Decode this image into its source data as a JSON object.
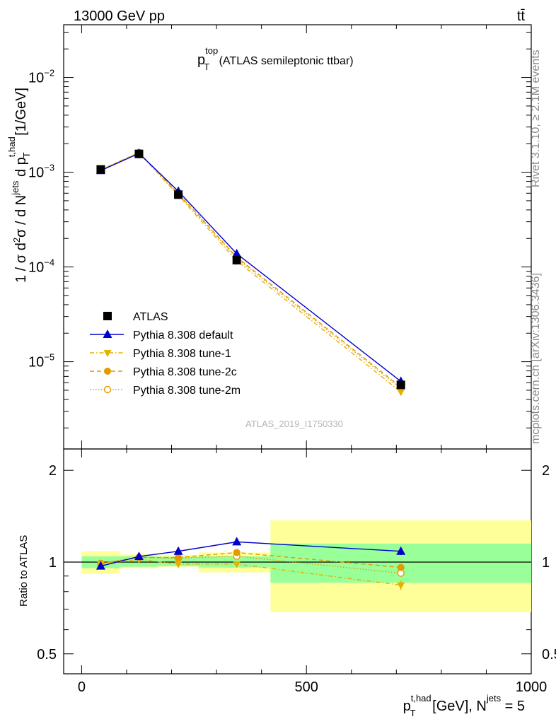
{
  "header": {
    "energy_label": "13000 GeV pp",
    "process_label": "tt̄",
    "plot_title_main": "p",
    "plot_title_sup": "top",
    "plot_title_sub": "T",
    "plot_title_rest": " (ATLAS semileptonic ttbar)",
    "analysis_id": "ATLAS_2019_I1750330",
    "side_rivet": "Rivet 3.1.10, ≥ 2.1M events",
    "side_mcplots": "mcplots.cern.ch [arXiv:1306.3436]"
  },
  "axes": {
    "ylabel_upper": "1 / σ d²σ / d N^jets d p_T^t,had [1/GeV]",
    "ylabel_lower": "Ratio to ATLAS",
    "xlabel": "p_T^t,had [GeV], N^jets = 5"
  },
  "chart_data": [
    {
      "type": "line",
      "panel": "main",
      "yscale": "log",
      "xlim": [
        -40,
        1000
      ],
      "ylim": [
        1.2e-06,
        0.036
      ],
      "xticks": [
        0,
        500,
        1000
      ],
      "xticklabels": [
        "0",
        "500",
        "1000"
      ],
      "yticks": [
        1e-05,
        0.0001,
        0.001,
        0.01
      ],
      "yticklabels": [
        "10^-5",
        "10^-4",
        "10^-3",
        "10^-2"
      ],
      "x": [
        42.5,
        127.5,
        215,
        345,
        710
      ],
      "bin_edges": [
        0,
        85,
        170,
        260,
        420,
        1000
      ],
      "legend_position": "lower-left",
      "series": [
        {
          "name": "ATLAS",
          "values": [
            0.00107,
            0.00156,
            0.00058,
            0.000118,
            5.7e-06
          ],
          "color": "#000000",
          "marker": "square",
          "line": "none"
        },
        {
          "name": "Pythia 8.308 default",
          "values": [
            0.00104,
            0.00158,
            0.00063,
            0.000138,
            6.2e-06
          ],
          "color": "#0000cc",
          "marker": "triangle-up",
          "line": "solid"
        },
        {
          "name": "Pythia 8.308 tune-1",
          "values": [
            0.00105,
            0.0016,
            0.00057,
            0.000116,
            4.8e-06
          ],
          "color": "#e6b000",
          "marker": "triangle-down",
          "line": "dashdot"
        },
        {
          "name": "Pythia 8.308 tune-2c",
          "values": [
            0.00106,
            0.00161,
            0.0006,
            0.000127,
            5.4e-06
          ],
          "color": "#e39a00",
          "marker": "circle",
          "line": "dashed"
        },
        {
          "name": "Pythia 8.308 tune-2m",
          "values": [
            0.00106,
            0.00161,
            0.00059,
            0.000123,
            5.2e-06
          ],
          "color": "#e39a00",
          "marker": "circle-open",
          "line": "dotted"
        }
      ]
    },
    {
      "type": "line",
      "panel": "ratio",
      "yscale": "log",
      "ylim": [
        0.43,
        2.35
      ],
      "yticks": [
        0.5,
        1,
        2
      ],
      "yticklabels": [
        "0.5",
        "1",
        "2"
      ],
      "x": [
        42.5,
        127.5,
        215,
        345,
        710
      ],
      "bands": {
        "bin_edges": [
          0,
          85,
          170,
          260,
          420,
          1000
        ],
        "green_low": [
          0.955,
          0.965,
          0.97,
          0.96,
          0.855
        ],
        "green_high": [
          1.045,
          1.045,
          1.04,
          1.045,
          1.15
        ],
        "yellow_low": [
          0.915,
          0.955,
          0.965,
          0.925,
          0.685
        ],
        "yellow_high": [
          1.085,
          1.06,
          1.055,
          1.075,
          1.37
        ]
      },
      "series": [
        {
          "name": "Pythia 8.308 default",
          "values": [
            0.97,
            1.043,
            1.085,
            1.165,
            1.085
          ],
          "color": "#0000cc",
          "marker": "triangle-up",
          "line": "solid"
        },
        {
          "name": "Pythia 8.308 tune-1",
          "values": [
            0.985,
            1.02,
            0.985,
            0.985,
            0.84
          ],
          "color": "#e6b000",
          "marker": "triangle-down",
          "line": "dashdot"
        },
        {
          "name": "Pythia 8.308 tune-2c",
          "values": [
            0.99,
            1.035,
            1.035,
            1.075,
            0.96
          ],
          "color": "#e39a00",
          "marker": "circle",
          "line": "dashed"
        },
        {
          "name": "Pythia 8.308 tune-2m",
          "values": [
            0.99,
            1.035,
            1.03,
            1.045,
            0.92
          ],
          "color": "#e39a00",
          "marker": "circle-open",
          "line": "dotted"
        }
      ]
    }
  ]
}
